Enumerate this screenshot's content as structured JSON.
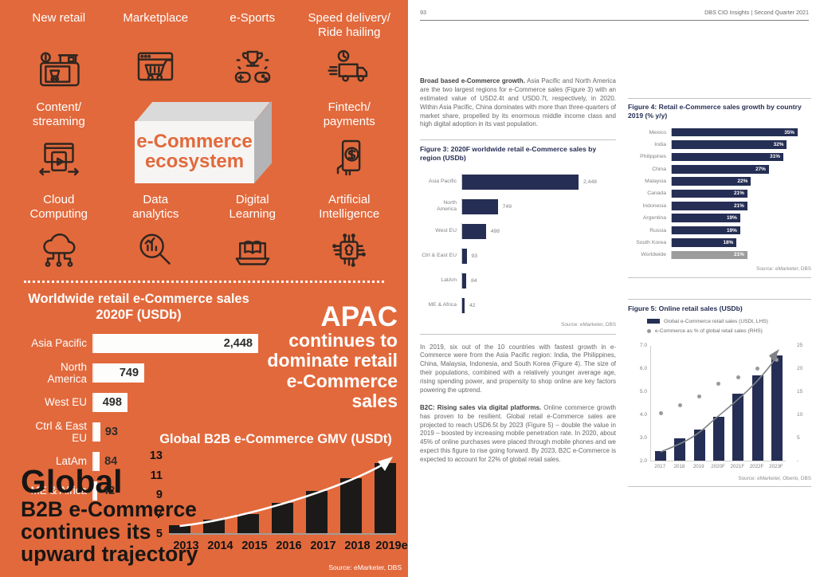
{
  "colors": {
    "orange": "#E2693C",
    "navy": "#252E54",
    "worldwide_gray": "#9C9C9C",
    "dot_gray": "#97999C",
    "bar_black": "#1B1A18"
  },
  "left_page": {
    "items": [
      {
        "icon": "new-retail-icon",
        "label": "New retail"
      },
      {
        "icon": "marketplace-icon",
        "label": "Marketplace"
      },
      {
        "icon": "esports-icon",
        "label": "e-Sports"
      },
      {
        "icon": "speed-delivery-icon",
        "label": "Speed delivery/\nRide hailing"
      },
      {
        "icon": "content-streaming-icon",
        "label": "Content/\nstreaming"
      },
      {
        "icon": "fintech-payments-icon",
        "label": "Fintech/\npayments"
      },
      {
        "icon": "cloud-computing-icon",
        "label": "Cloud\nComputing"
      },
      {
        "icon": "data-analytics-icon",
        "label": "Data\nanalytics"
      },
      {
        "icon": "digital-learning-icon",
        "label": "Digital\nLearning"
      },
      {
        "icon": "artificial-intelligence-icon",
        "label": "Artificial\nIntelligence"
      }
    ],
    "center_box": {
      "line1": "e-Commerce",
      "line2": "ecosystem"
    },
    "ww_chart": {
      "title": "Worldwide retail e-Commerce sales\n2020F (USDb)",
      "categories": [
        "Asia Pacific",
        "North America",
        "West EU",
        "Ctrl & East EU",
        "LatAm",
        "ME & Africa"
      ],
      "values": [
        2448,
        749,
        498,
        93,
        84,
        42
      ],
      "labels": [
        "2,448",
        "749",
        "498",
        "93",
        "84",
        "42"
      ]
    },
    "apac_callout": {
      "big": "APAC",
      "lines": "continues to\ndominate retail\ne-Commerce\nsales"
    },
    "b2b_callout": {
      "big": "Global",
      "lines": "B2B e-Commerce\ncontinues its\nupward trajectory"
    },
    "b2b_chart": {
      "title": "Global B2B e-Commerce GMV (USDt)",
      "years": [
        "2013",
        "2014",
        "2015",
        "2016",
        "2017",
        "2018",
        "2019e"
      ],
      "values": [
        5.8,
        6.4,
        7.0,
        8.1,
        9.3,
        10.6,
        12.2
      ],
      "y_ticks": [
        "13",
        "11",
        "9",
        "7",
        "5"
      ]
    },
    "source": "Source: eMarketer, DBS"
  },
  "right_page": {
    "header": {
      "page_number": "93",
      "title": "DBS CIO Insights | Second Quarter 2021"
    },
    "p1": {
      "lead": "Broad based e-Commerce growth.",
      "text": " Asia Pacific and North America are the two largest regions for e-Commerce sales (Figure 3) with an estimated value of USD2.4t and USD0.7t, respectively, in 2020. Within Asia Pacific, China dominates with more than three-quarters of market share, propelled by its enormous middle income class and high digital adoption in its vast population."
    },
    "p2": {
      "text": "In 2019, six out of the 10 countries with fastest growth in e-Commerce were from the Asia Pacific region: India, the Philippines, China, Malaysia, Indonesia, and South Korea (Figure 4). The size of their populations, combined with a relatively younger average age, rising spending power, and propensity to shop online are key factors powering the uptrend."
    },
    "p3": {
      "lead": "B2C: Rising sales via digital platforms.",
      "text": " Online commerce growth has proven to be resilient. Global retail e-Commerce sales are projected to reach USD6.5t by 2023 (Figure 5) – double the value in 2019 – boosted by increasing mobile penetration rate. In 2020, about 45% of online purchases were placed through mobile phones and we expect this figure to rise going forward. By 2023, B2C e-Commerce is expected to account for 22% of global retail sales."
    },
    "figure3": {
      "title": "Figure 3: 2020F worldwide retail e-Commerce sales by region (USDb)",
      "categories": [
        "Asia Pacific",
        "North\nAmerica",
        "West EU",
        "Ctrl & East EU",
        "LatAm",
        "ME & Africa"
      ],
      "values": [
        2448,
        749,
        498,
        93,
        84,
        42
      ],
      "labels": [
        "2,448",
        "749",
        "498",
        "93",
        "84",
        "42"
      ],
      "source": "Source: eMarketer, DBS"
    },
    "figure4": {
      "title": "Figure 4: Retail e-Commerce sales growth by country 2019 (% y/y)",
      "categories": [
        "Mexico",
        "India",
        "Philippines",
        "China",
        "Malaysia",
        "Canada",
        "Indonesia",
        "Argentina",
        "Russia",
        "South Korea",
        "Worldwide"
      ],
      "values": [
        35,
        32,
        31,
        27,
        22,
        21,
        21,
        19,
        19,
        18,
        21
      ],
      "labels": [
        "35%",
        "32%",
        "31%",
        "27%",
        "22%",
        "21%",
        "21%",
        "19%",
        "19%",
        "18%",
        "21%"
      ],
      "source": "Source: eMarketer, DBS"
    },
    "figure5": {
      "title": "Figure 5: Online retail sales (USDb)",
      "legend1": "Global e-Commerce retail sales (USDt, LHS)",
      "legend2": "e-Commerce as % of global retail sales (RHS)",
      "years": [
        "2017",
        "2018",
        "2019",
        "2020F",
        "2021F",
        "2022F",
        "2023F"
      ],
      "bars": [
        2.4,
        2.95,
        3.35,
        3.9,
        4.9,
        5.7,
        6.55
      ],
      "dots": [
        10.4,
        12.2,
        14.1,
        16.8,
        18.2,
        20.0,
        22.0
      ],
      "left_ticks": [
        "7.0",
        "6.0",
        "5.0",
        "4.0",
        "3.0",
        "2.0"
      ],
      "right_ticks": [
        "25",
        "20",
        "15",
        "10",
        "5",
        "-"
      ],
      "source": "Source: eMarketer, Oberlo, DBS"
    }
  },
  "chart_data": [
    {
      "type": "bar",
      "orientation": "horizontal",
      "title": "Worldwide retail e-Commerce sales 2020F (USDb)",
      "categories": [
        "Asia Pacific",
        "North America",
        "West EU",
        "Ctrl & East EU",
        "LatAm",
        "ME & Africa"
      ],
      "values": [
        2448,
        749,
        498,
        93,
        84,
        42
      ],
      "xlabel": "",
      "ylabel": "",
      "xlim": [
        0,
        2500
      ]
    },
    {
      "type": "bar",
      "orientation": "vertical",
      "title": "Global B2B e-Commerce GMV (USDt)",
      "categories": [
        "2013",
        "2014",
        "2015",
        "2016",
        "2017",
        "2018",
        "2019e"
      ],
      "values": [
        5.8,
        6.4,
        7.0,
        8.1,
        9.3,
        10.6,
        12.2
      ],
      "ylim": [
        5,
        13
      ],
      "annotations": [
        "upward trend arrow"
      ]
    },
    {
      "type": "bar",
      "orientation": "horizontal",
      "title": "Figure 3: 2020F worldwide retail e-Commerce sales by region (USDb)",
      "categories": [
        "Asia Pacific",
        "North America",
        "West EU",
        "Ctrl & East EU",
        "LatAm",
        "ME & Africa"
      ],
      "values": [
        2448,
        749,
        498,
        93,
        84,
        42
      ],
      "source": "eMarketer, DBS"
    },
    {
      "type": "bar",
      "orientation": "horizontal",
      "title": "Figure 4: Retail e-Commerce sales growth by country 2019 (% y/y)",
      "categories": [
        "Mexico",
        "India",
        "Philippines",
        "China",
        "Malaysia",
        "Canada",
        "Indonesia",
        "Argentina",
        "Russia",
        "South Korea",
        "Worldwide"
      ],
      "values": [
        35,
        32,
        31,
        27,
        22,
        21,
        21,
        19,
        19,
        18,
        21
      ],
      "unit": "%",
      "source": "eMarketer, DBS"
    },
    {
      "type": "bar",
      "title": "Figure 5: Online retail sales (USDb)",
      "categories": [
        "2017",
        "2018",
        "2019",
        "2020F",
        "2021F",
        "2022F",
        "2023F"
      ],
      "series": [
        {
          "name": "Global e-Commerce retail sales (USDt, LHS)",
          "type": "bar",
          "values": [
            2.4,
            2.95,
            3.35,
            3.9,
            4.9,
            5.7,
            6.55
          ],
          "axis": "left",
          "ylim": [
            2.0,
            7.0
          ]
        },
        {
          "name": "e-Commerce as % of global retail sales (RHS)",
          "type": "scatter",
          "values": [
            10.4,
            12.2,
            14.1,
            16.8,
            18.2,
            20.0,
            22.0
          ],
          "axis": "right",
          "ylim": [
            0,
            25
          ]
        }
      ],
      "legend_position": "top",
      "source": "eMarketer, Oberlo, DBS"
    }
  ]
}
